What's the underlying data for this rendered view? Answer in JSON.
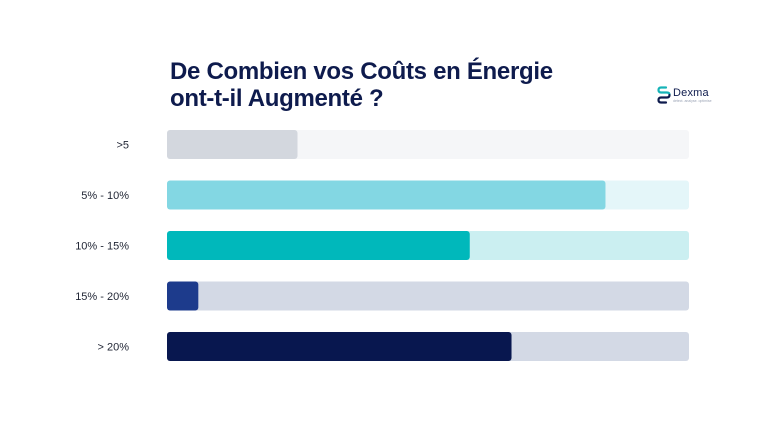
{
  "brand": {
    "name": "Dexma",
    "tagline": "detect. analyse. optimise",
    "icon": "dexma-logo-icon"
  },
  "chart_data": {
    "type": "bar",
    "orientation": "horizontal",
    "title_lines": [
      "De Combien vos Coûts en Énergie",
      "ont-t-il Augmenté ?"
    ],
    "categories": [
      ">5",
      "5% - 10%",
      "10% -  15%",
      "15% - 20%",
      "> 20%"
    ],
    "values": [
      25,
      84,
      58,
      6,
      66
    ],
    "xlim": [
      0,
      100
    ],
    "grid": false,
    "legend": "none",
    "bar_colors": [
      "#d3d7de",
      "#83d7e3",
      "#00b8bb",
      "#1d3b8c",
      "#08174f"
    ],
    "track_colors": [
      "#f5f6f8",
      "#e4f6f9",
      "#cbeff1",
      "#d3d9e5",
      "#d3d9e5"
    ]
  }
}
